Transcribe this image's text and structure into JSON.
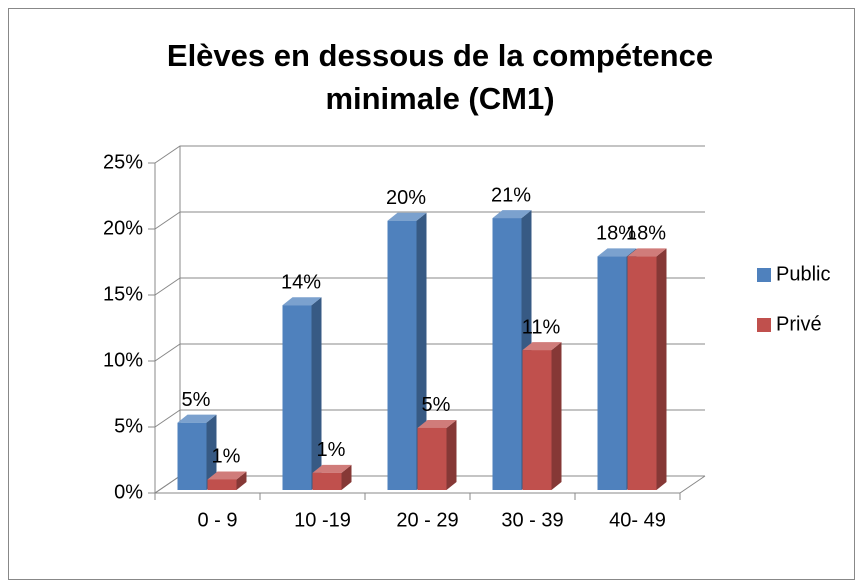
{
  "chart_data": {
    "type": "bar3d",
    "title": [
      "Elèves en dessous de la compétence",
      "minimale (CM1)"
    ],
    "categories": [
      "0 - 9",
      "10 -19",
      "20 - 29",
      "30 - 39",
      "40- 49"
    ],
    "series": [
      {
        "name": "Public",
        "color": "#4f81bd",
        "values": [
          5.1,
          14,
          20.4,
          20.6,
          17.7
        ],
        "value_labels": [
          "5%",
          "14%",
          "20%",
          "21%",
          "18%"
        ]
      },
      {
        "name": "Privé",
        "color": "#c0504d",
        "values": [
          0.8,
          1.3,
          4.7,
          10.6,
          17.7
        ],
        "value_labels": [
          "1%",
          "1%",
          "5%",
          "11%",
          "18%"
        ]
      }
    ],
    "ylim": [
      0,
      25
    ],
    "yticks": [
      {
        "value": 0,
        "label": "0%"
      },
      {
        "value": 5,
        "label": "5%"
      },
      {
        "value": 10,
        "label": "10%"
      },
      {
        "value": 15,
        "label": "15%"
      },
      {
        "value": 20,
        "label": "20%"
      },
      {
        "value": 25,
        "label": "25%"
      }
    ],
    "grid": true,
    "legend": "right"
  }
}
